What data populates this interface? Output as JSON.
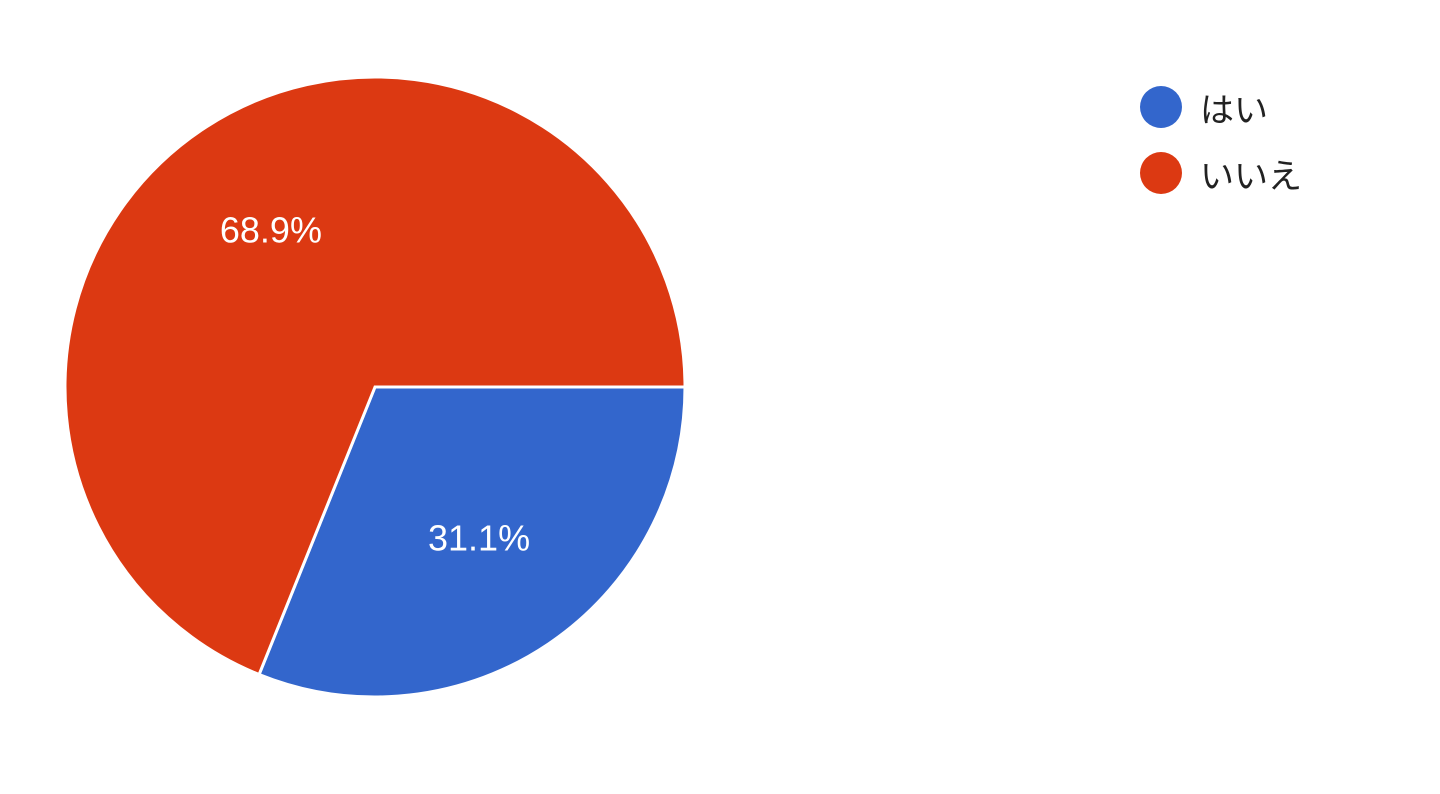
{
  "chart_data": {
    "type": "pie",
    "categories": [
      "はい",
      "いいえ"
    ],
    "values": [
      31.1,
      68.9
    ],
    "labels": [
      "31.1%",
      "68.9%"
    ],
    "colors": [
      "#3366cc",
      "#dc3912"
    ],
    "legend_position": "right",
    "start_angle_deg": 90
  },
  "legend": {
    "items": [
      {
        "label": "はい",
        "color": "#3366cc"
      },
      {
        "label": "いいえ",
        "color": "#dc3912"
      }
    ]
  }
}
